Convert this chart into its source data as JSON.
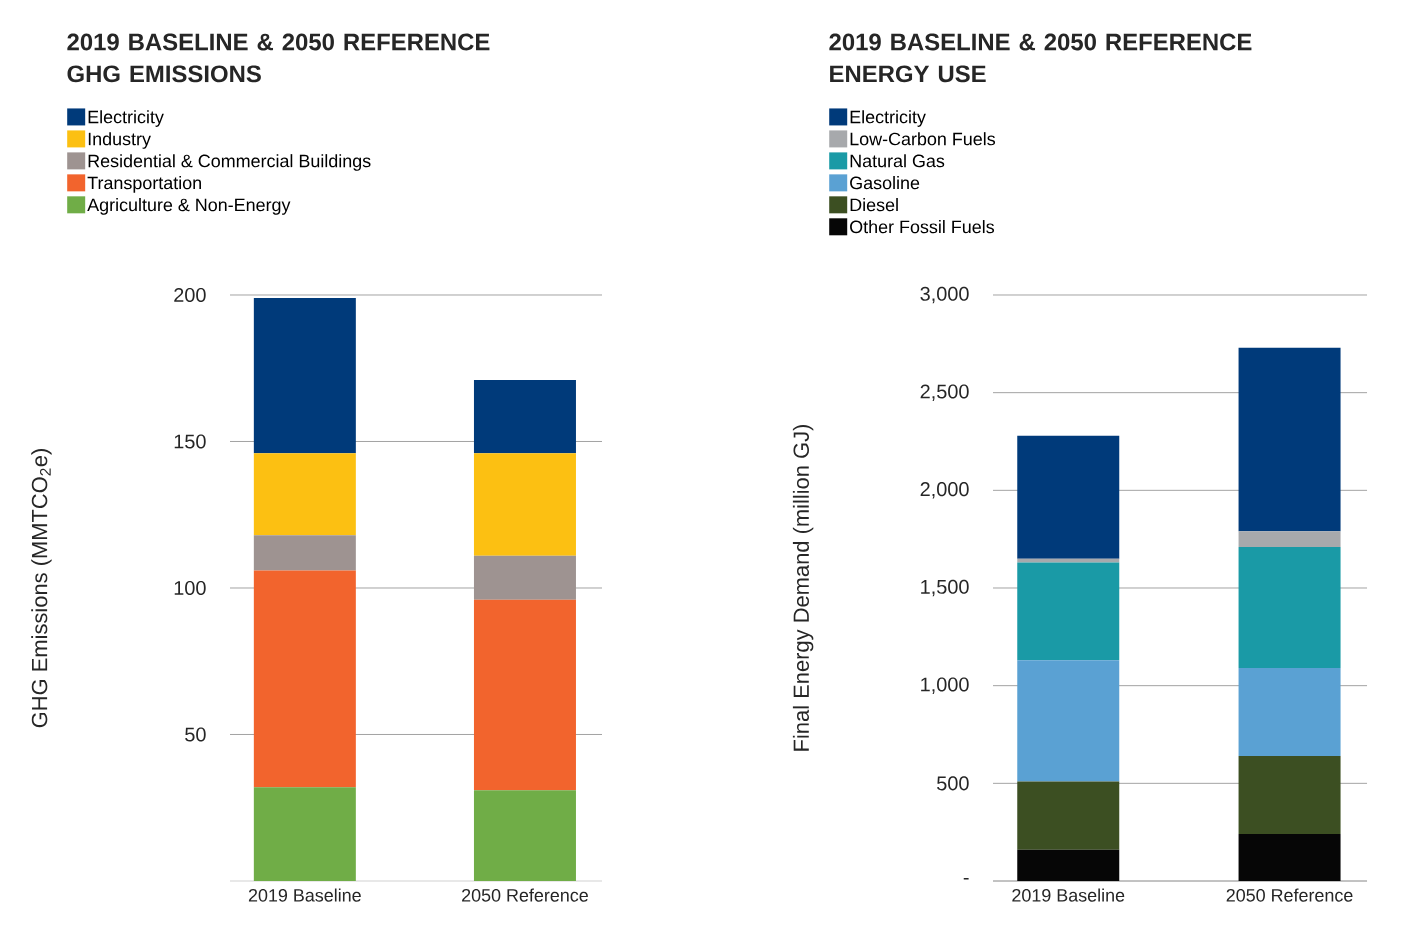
{
  "chart_data": [
    {
      "type": "bar",
      "title": "2019 BASELINE & 2050 REFERENCE GHG EMISSIONS",
      "ylabel": "GHG Emissions (MMTCO$_{2}$e)",
      "categories": [
        "2019 Baseline",
        "2050 Reference"
      ],
      "stacked": true,
      "grid": "y",
      "legend": "top left",
      "ylim": [
        0,
        200
      ],
      "yticks": [
        50,
        100,
        150,
        200
      ],
      "series": [
        {
          "name": "Agriculture & Non-Energy",
          "color": "#70ad47",
          "values": [
            32,
            31
          ]
        },
        {
          "name": "Transportation",
          "color": "#f2642d",
          "values": [
            74,
            65
          ]
        },
        {
          "name": "Residential & Commercial Buildings",
          "color": "#9e9391",
          "values": [
            12,
            15
          ]
        },
        {
          "name": "Industry",
          "color": "#fcc012",
          "values": [
            28,
            35
          ]
        },
        {
          "name": "Electricity",
          "color": "#003a7a",
          "values": [
            53,
            25
          ]
        }
      ]
    },
    {
      "type": "bar",
      "title": "2019 BASELINE & 2050 REFERENCE ENERGY USE",
      "ylabel": "Final Energy Demand (million GJ)",
      "categories": [
        "2019 Baseline",
        "2050 Reference"
      ],
      "stacked": true,
      "grid": "y",
      "legend": "top left",
      "ylim": [
        0,
        3000
      ],
      "yticks": [
        {
          "value": 0,
          "label": "-"
        },
        500,
        {
          "value": 1000,
          "label": "1,000"
        },
        {
          "value": 1500,
          "label": "1,500"
        },
        {
          "value": 2000,
          "label": "2,000"
        },
        {
          "value": 2500,
          "label": "2,500"
        },
        {
          "value": 3000,
          "label": "3,000"
        }
      ],
      "series": [
        {
          "name": "Other Fossil Fuels",
          "color": "#060606",
          "values": [
            160,
            240
          ]
        },
        {
          "name": "Diesel",
          "color": "#3c4f22",
          "values": [
            350,
            400
          ]
        },
        {
          "name": "Gasoline",
          "color": "#5aa1d3",
          "values": [
            620,
            450
          ]
        },
        {
          "name": "Natural Gas",
          "color": "#1a9aa6",
          "values": [
            500,
            620
          ]
        },
        {
          "name": "Low-Carbon Fuels",
          "color": "#a7a9ac",
          "values": [
            20,
            80
          ]
        },
        {
          "name": "Electricity",
          "color": "#003a7a",
          "values": [
            630,
            940
          ]
        }
      ]
    }
  ]
}
